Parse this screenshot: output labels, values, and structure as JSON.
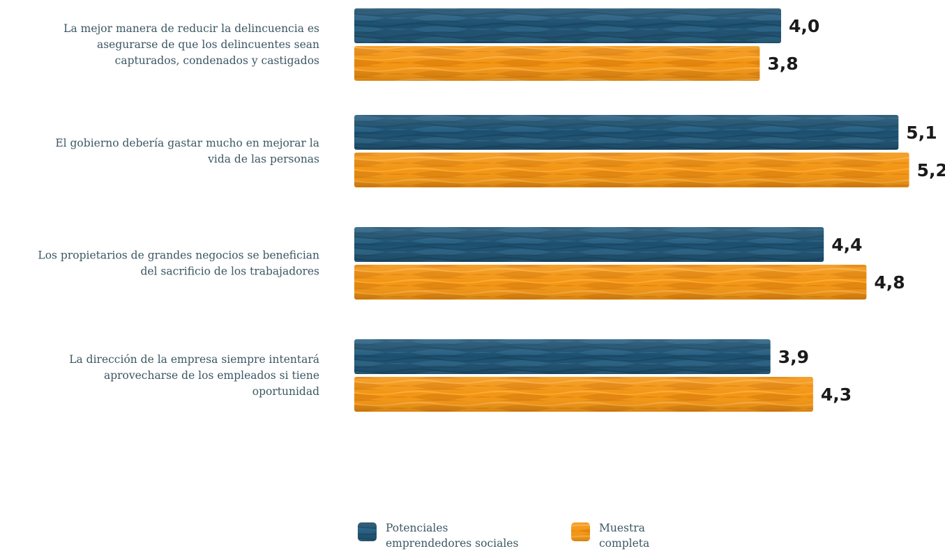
{
  "chart_data": {
    "type": "bar",
    "orientation": "horizontal",
    "categories": [
      [
        "La mejor manera de reducir la delincuencia es",
        "asegurarse de que los delincuentes sean",
        "capturados, condenados y castigados"
      ],
      [
        "El gobierno debería gastar mucho en mejorar la",
        "vida de las personas"
      ],
      [
        "Los propietarios de grandes negocios se benefician",
        "del sacrificio de los trabajadores"
      ],
      [
        "La dirección de la empresa siempre intentará",
        "aprovecharse de los empleados si tiene",
        "oportunidad"
      ]
    ],
    "series": [
      {
        "name": "Potenciales emprendedores sociales",
        "legend_lines": [
          "Potenciales",
          "emprendedores sociales"
        ],
        "color": "#1c4f6f",
        "values": [
          4.0,
          5.1,
          4.4,
          3.9
        ],
        "labels": [
          "4,0",
          "5,1",
          "4,4",
          "3,9"
        ]
      },
      {
        "name": "Muestra completa",
        "legend_lines": [
          "Muestra",
          "completa"
        ],
        "color": "#f39512",
        "values": [
          3.8,
          5.2,
          4.8,
          4.3
        ],
        "labels": [
          "3,8",
          "5,2",
          "4,8",
          "4,3"
        ]
      }
    ],
    "title": "",
    "xlabel": "",
    "ylabel": "",
    "legend_position": "bottom",
    "grid": false
  }
}
